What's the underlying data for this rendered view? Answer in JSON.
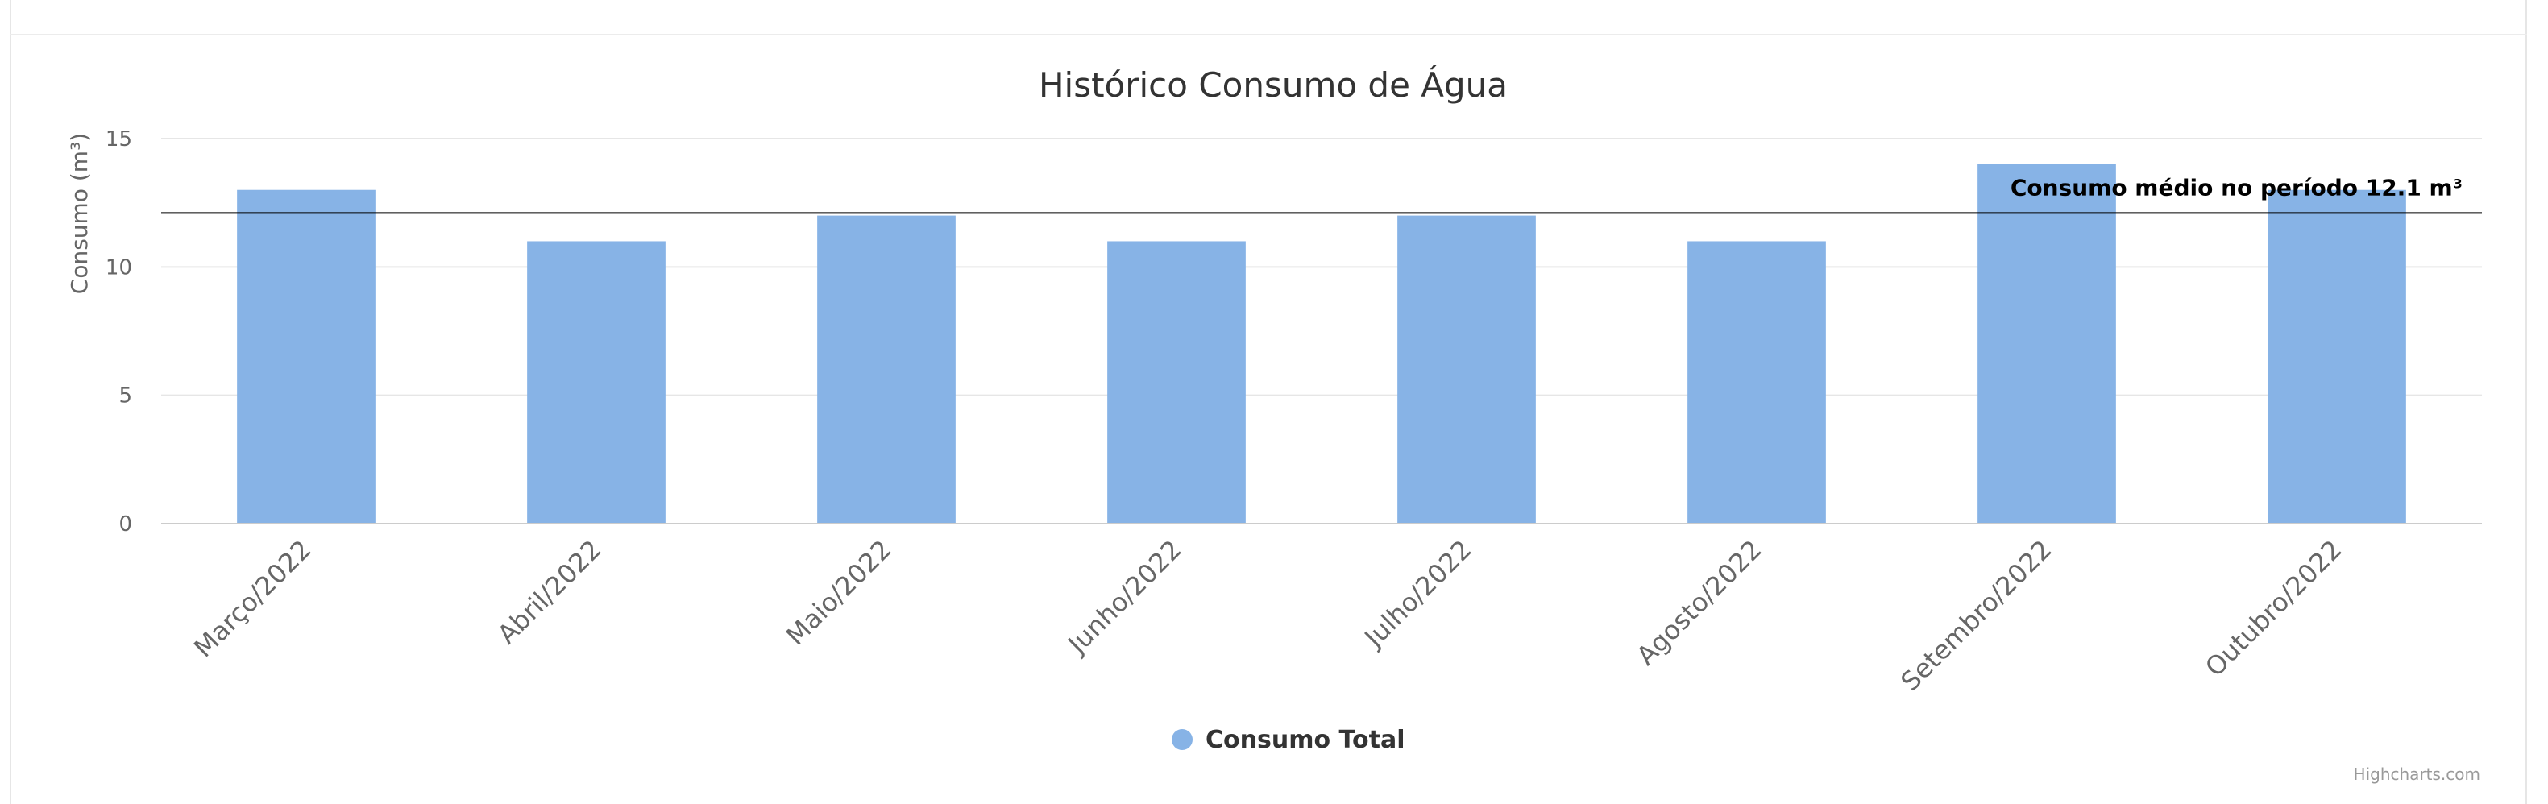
{
  "chart_data": {
    "type": "bar",
    "title": "Histórico Consumo de Água",
    "ylabel": "Consumo (m³)",
    "categories": [
      "Março/2022",
      "Abril/2022",
      "Maio/2022",
      "Junho/2022",
      "Julho/2022",
      "Agosto/2022",
      "Setembro/2022",
      "Outubro/2022"
    ],
    "series": [
      {
        "name": "Consumo Total",
        "values": [
          13,
          11,
          12,
          11,
          12,
          11,
          14,
          13
        ],
        "color": "#87b3e6"
      }
    ],
    "ylim": [
      0,
      15
    ],
    "yticks": [
      0,
      5,
      10,
      15
    ],
    "grid": true,
    "plot_line": {
      "value": 12.1,
      "label": "Consumo médio no período 12.1 m³",
      "color": "#000000"
    },
    "legend_position": "bottom-center",
    "credits": "Highcharts.com"
  }
}
